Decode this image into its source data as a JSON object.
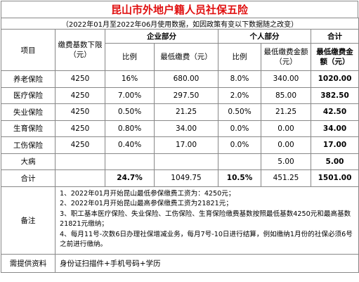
{
  "title": "昆山市外地户籍人员社保五险",
  "subtitle": "（2022年01月至2022年06月使用数据，如因政策有变以下数据随之改变）",
  "headers": {
    "item": "项目",
    "base": "缴费基数下限（元）",
    "company": "企业部分",
    "personal": "个人部分",
    "total": "合计",
    "ratio": "比例",
    "min_fee": "最低缴费（元）",
    "p_ratio": "比例",
    "p_min_fee": "最低缴费金额（元）",
    "total_min": "最低缴费金额（元）"
  },
  "rows": [
    {
      "name": "养老保险",
      "base": "4250",
      "c_ratio": "16%",
      "c_fee": "680.00",
      "p_ratio": "8.0%",
      "p_fee": "340.00",
      "total": "1020.00"
    },
    {
      "name": "医疗保险",
      "base": "4250",
      "c_ratio": "7.00%",
      "c_fee": "297.50",
      "p_ratio": "2.0%",
      "p_fee": "85.00",
      "total": "382.50"
    },
    {
      "name": "失业保险",
      "base": "4250",
      "c_ratio": "0.50%",
      "c_fee": "21.25",
      "p_ratio": "0.50%",
      "p_fee": "21.25",
      "total": "42.50"
    },
    {
      "name": "生育保险",
      "base": "4250",
      "c_ratio": "0.80%",
      "c_fee": "34.00",
      "p_ratio": "0.0%",
      "p_fee": "0.00",
      "total": "34.00"
    },
    {
      "name": "工伤保险",
      "base": "4250",
      "c_ratio": "0.40%",
      "c_fee": "17.00",
      "p_ratio": "0.0%",
      "p_fee": "0.00",
      "total": "17.00"
    },
    {
      "name": "大病",
      "base": "",
      "c_ratio": "",
      "c_fee": "",
      "p_ratio": "",
      "p_fee": "5.00",
      "total": "5.00"
    }
  ],
  "sum_row": {
    "name": "合计",
    "c_ratio": "24.7%",
    "c_fee": "1049.75",
    "p_ratio": "10.5%",
    "p_fee": "451.25",
    "total": "1501.00"
  },
  "notes": {
    "label": "备注",
    "lines": [
      "1、2022年01月开始昆山最低参保缴费工资为：4250元；",
      "2、2022年01月开始昆山最高参保缴费工资为21821元；",
      "3、职工基本医疗保险、失业保险、工伤保险、生育保险缴费基数按照最低基数4250元和最高基数21821元缴纳；",
      "4、每月11号-次数6日办理社保增减业务，每月7号-10日进行结算，例如缴纳1月份的社保必须6号之前进行缴纳。"
    ]
  },
  "requirements": {
    "label": "需提供资料",
    "value": "身份证扫描件+手机号码+学历"
  }
}
